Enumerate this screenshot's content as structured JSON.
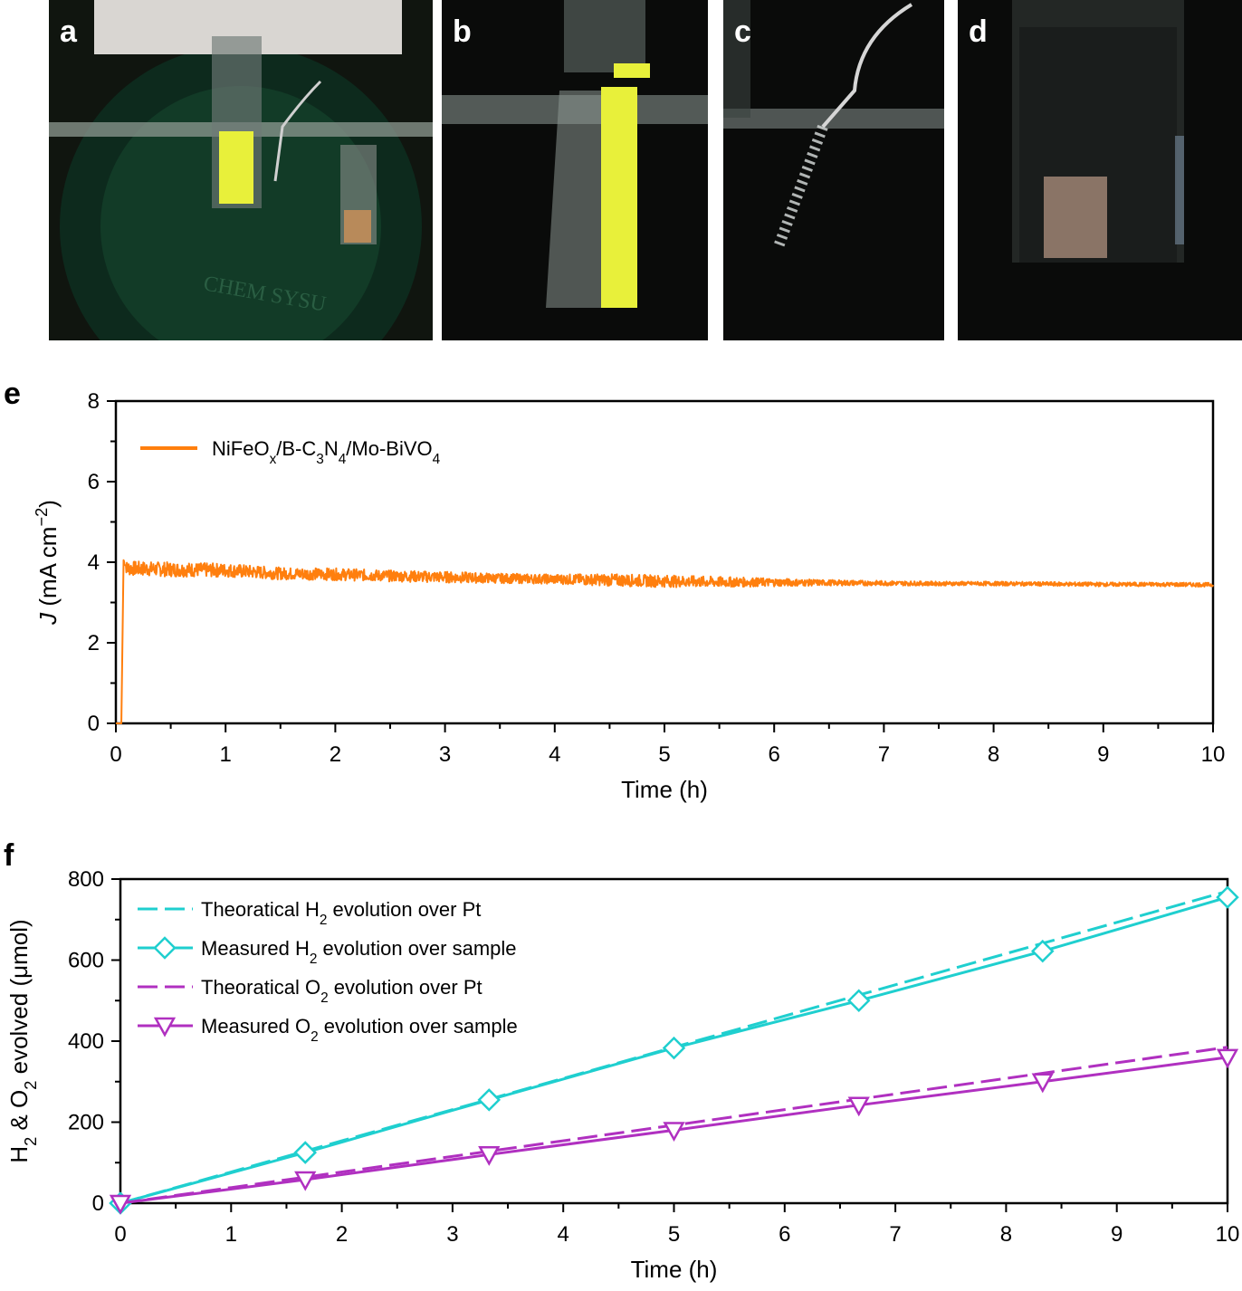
{
  "panels": {
    "a": {
      "label": "a",
      "watermark": "CHEM SYSU"
    },
    "b": {
      "label": "b"
    },
    "c": {
      "label": "c"
    },
    "d": {
      "label": "d"
    },
    "e": {
      "label": "e"
    },
    "f": {
      "label": "f"
    }
  },
  "colors": {
    "orange": "#ff7f0e",
    "cyan": "#1fcfcf",
    "purple": "#b030c0",
    "photo_bg": "#0e1110",
    "yellow_green": "#e8f03a"
  },
  "chart_data": [
    {
      "panel": "e",
      "type": "line",
      "xlabel": "Time (h)",
      "ylabel": "J (mA cm−2)",
      "xlim": [
        0,
        10
      ],
      "ylim": [
        0,
        8
      ],
      "xticks": [
        0,
        1,
        2,
        3,
        4,
        5,
        6,
        7,
        8,
        9,
        10
      ],
      "yticks": [
        0,
        2,
        4,
        6,
        8
      ],
      "legend_position": "top-left",
      "series": [
        {
          "name": "NiFeOx/B-C3N4/Mo-BiVO4",
          "color": "#ff7f0e",
          "x": [
            0,
            0.05,
            0.07,
            0.1,
            0.5,
            1,
            1.5,
            2,
            2.5,
            3,
            3.5,
            4,
            4.5,
            5,
            5.5,
            6,
            6.5,
            7,
            7.5,
            8,
            8.5,
            9,
            9.5,
            10
          ],
          "y": [
            0,
            0,
            4.05,
            3.85,
            3.82,
            3.8,
            3.72,
            3.7,
            3.66,
            3.63,
            3.6,
            3.58,
            3.56,
            3.53,
            3.51,
            3.5,
            3.49,
            3.48,
            3.47,
            3.47,
            3.46,
            3.45,
            3.45,
            3.44
          ],
          "noise_amplitude": [
            0,
            0,
            0,
            0.18,
            0.18,
            0.17,
            0.15,
            0.15,
            0.14,
            0.14,
            0.12,
            0.12,
            0.15,
            0.15,
            0.13,
            0.1,
            0.07,
            0.06,
            0.05,
            0.05,
            0.05,
            0.05,
            0.05,
            0.05
          ]
        }
      ]
    },
    {
      "panel": "f",
      "type": "line",
      "xlabel": "Time (h)",
      "ylabel": "H2 & O2 evolved (μmol)",
      "xlim": [
        0,
        10
      ],
      "ylim": [
        0,
        800
      ],
      "xticks": [
        0,
        1,
        2,
        3,
        4,
        5,
        6,
        7,
        8,
        9,
        10
      ],
      "yticks": [
        0,
        200,
        400,
        600,
        800
      ],
      "legend_position": "top-left",
      "series": [
        {
          "name": "Theoratical H2 evolution over Pt",
          "color": "#1fcfcf",
          "style": "dash-dot",
          "x": [
            0,
            10
          ],
          "y": [
            0,
            770
          ]
        },
        {
          "name": "Measured H2 evolution over sample",
          "color": "#1fcfcf",
          "style": "solid",
          "marker": "diamond",
          "x": [
            0,
            1.67,
            3.33,
            5,
            6.67,
            8.33,
            10
          ],
          "y": [
            0,
            125,
            255,
            383,
            500,
            622,
            755
          ]
        },
        {
          "name": "Theoratical O2 evolution over Pt",
          "color": "#b030c0",
          "style": "dash-dot",
          "x": [
            0,
            10
          ],
          "y": [
            0,
            385
          ]
        },
        {
          "name": "Measured O2 evolution over sample",
          "color": "#b030c0",
          "style": "solid",
          "marker": "triangle-down",
          "x": [
            0,
            1.67,
            3.33,
            5,
            6.67,
            8.33,
            10
          ],
          "y": [
            0,
            58,
            120,
            180,
            242,
            300,
            360
          ]
        }
      ]
    }
  ]
}
